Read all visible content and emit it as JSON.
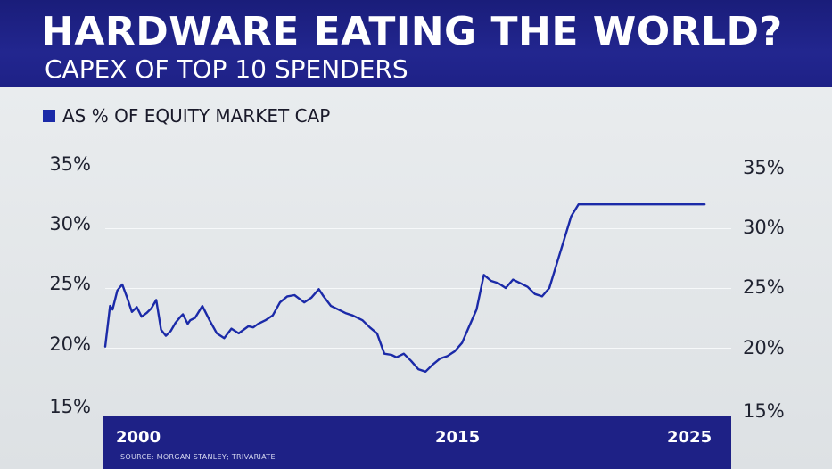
{
  "header": {
    "title": "HARDWARE EATING THE WORLD?",
    "subtitle": "CAPEX OF TOP 10 SPENDERS"
  },
  "legend": {
    "label": "AS % OF EQUITY MARKET CAP",
    "color": "#1b2aa8"
  },
  "colors": {
    "header_bg": "#1e2186",
    "line": "#1b2aa8",
    "axis_bar": "#1e2186"
  },
  "source": "SOURCE: MORGAN STANLEY; TRIVARIATE",
  "chart_data": {
    "type": "line",
    "title": "HARDWARE EATING THE WORLD?",
    "subtitle": "CAPEX OF TOP 10 SPENDERS",
    "xlabel": "",
    "ylabel": "",
    "ylim": [
      15,
      35
    ],
    "xlim": [
      2000,
      2025.5
    ],
    "y_ticks": [
      "35%",
      "30%",
      "25%",
      "20%",
      "15%"
    ],
    "x_ticks": [
      "2000",
      "2015",
      "2025"
    ],
    "grid": "horizontal",
    "legend_position": "top-left",
    "series": [
      {
        "name": "AS % OF EQUITY MARKET CAP",
        "x": [
          2000.0,
          2000.2,
          2000.3,
          2000.5,
          2000.7,
          2000.9,
          2001.1,
          2001.3,
          2001.5,
          2001.7,
          2001.9,
          2002.1,
          2002.3,
          2002.5,
          2002.7,
          2002.9,
          2003.1,
          2003.2,
          2003.4,
          2003.5,
          2003.7,
          2004.0,
          2004.3,
          2004.6,
          2004.9,
          2005.2,
          2005.5,
          2005.7,
          2005.9,
          2006.1,
          2006.3,
          2006.6,
          2006.9,
          2007.2,
          2007.5,
          2007.8,
          2008.0,
          2008.2,
          2008.5,
          2008.8,
          2009.0,
          2009.3,
          2009.6,
          2009.9,
          2010.2,
          2010.6,
          2010.9,
          2011.2,
          2011.5,
          2011.8,
          2012.0,
          2012.3,
          2012.6,
          2012.9,
          2013.2,
          2013.5,
          2013.8,
          2014.1,
          2014.4,
          2014.7,
          2015.0,
          2015.3,
          2015.6,
          2015.9,
          2016.2,
          2016.5,
          2016.8,
          2017.1,
          2017.4,
          2017.7,
          2018.0,
          2018.3,
          2018.6,
          2018.9,
          2019.2,
          2019.5,
          2019.8,
          2020.1,
          2020.4,
          2020.7,
          2021.0,
          2021.2,
          2021.5,
          2021.8,
          2022.1,
          2022.4,
          2022.7,
          2023.0,
          2023.3,
          2023.6,
          2023.9,
          2024.1,
          2024.3,
          2024.5,
          2024.7,
          2024.9,
          2025.1,
          2025.3
        ],
        "values": [
          20.1,
          23.5,
          23.2,
          24.8,
          25.3,
          24.2,
          23.0,
          23.4,
          22.6,
          22.9,
          23.3,
          24.0,
          21.5,
          21.0,
          21.4,
          22.1,
          22.6,
          22.8,
          22.0,
          22.3,
          22.5,
          23.5,
          22.3,
          21.2,
          20.8,
          21.6,
          21.2,
          21.5,
          21.8,
          21.7,
          22.0,
          22.3,
          22.7,
          23.8,
          24.3,
          24.4,
          24.1,
          23.8,
          24.2,
          24.9,
          24.3,
          23.5,
          23.2,
          22.9,
          22.7,
          22.3,
          21.7,
          21.2,
          19.5,
          19.4,
          19.2,
          19.5,
          18.9,
          18.2,
          18.0,
          18.6,
          19.1,
          19.3,
          19.7,
          20.4,
          21.8,
          23.2,
          26.1,
          25.6,
          25.4,
          25.0,
          25.7,
          25.4,
          25.1,
          24.5,
          24.3,
          25.0,
          27.0,
          29.0,
          31.0,
          32.0,
          32.0,
          32.0,
          32.0,
          32.0,
          32.0,
          32.0,
          32.0,
          32.0,
          32.0,
          32.0,
          32.0,
          32.0,
          32.0,
          32.0,
          32.0,
          32.0,
          32.0,
          32.0,
          32.0,
          32.0,
          32.0,
          32.0
        ]
      }
    ]
  }
}
